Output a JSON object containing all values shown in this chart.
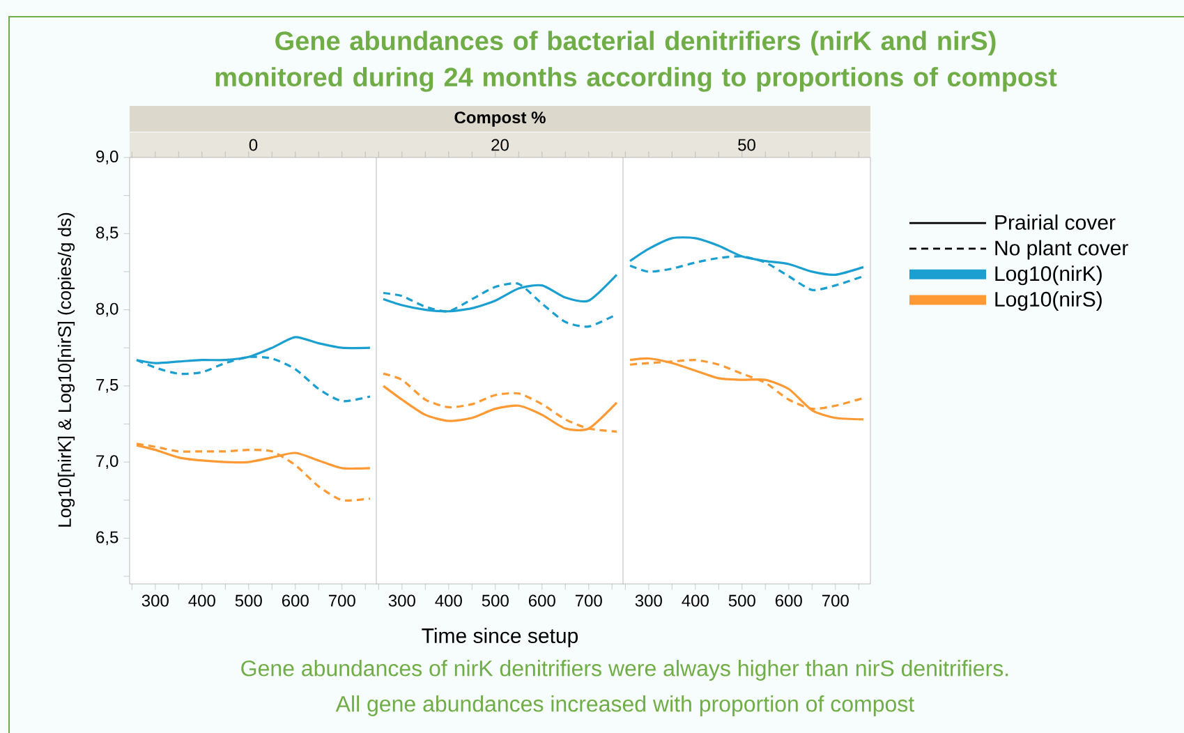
{
  "chart_data": [
    {
      "type": "line",
      "title": "0",
      "ylabel": "Log10[nirK] & Log10[nirS] (copies/g ds)",
      "x": [
        260,
        300,
        350,
        400,
        450,
        500,
        550,
        600,
        650,
        700,
        760
      ],
      "xlim": [
        245,
        775
      ],
      "xticks": [
        {
          "value": 250,
          "label": null
        },
        300,
        {
          "value": 350,
          "label": null
        },
        400,
        {
          "value": 450,
          "label": null
        },
        500,
        {
          "value": 550,
          "label": null
        },
        600,
        {
          "value": 650,
          "label": null
        },
        700,
        {
          "value": 750,
          "label": null
        }
      ],
      "ylim": [
        6.2,
        9.0
      ],
      "yticks": [
        {
          "value": 6.25,
          "label": null
        },
        {
          "value": 6.5,
          "label": "6,5"
        },
        {
          "value": 6.75,
          "label": null
        },
        {
          "value": 7.0,
          "label": "7,0"
        },
        {
          "value": 7.25,
          "label": null
        },
        {
          "value": 7.5,
          "label": "7,5"
        },
        {
          "value": 7.75,
          "label": null
        },
        {
          "value": 8.0,
          "label": "8,0"
        },
        {
          "value": 8.25,
          "label": null
        },
        {
          "value": 8.5,
          "label": "8,5"
        },
        {
          "value": 8.75,
          "label": null
        },
        {
          "value": 9.0,
          "label": "9,0"
        }
      ],
      "series": [
        {
          "color": "#1a9fd0",
          "line_style": "solid",
          "values": [
            7.67,
            7.65,
            7.66,
            7.67,
            7.67,
            7.69,
            7.75,
            7.82,
            7.78,
            7.75,
            7.75
          ]
        },
        {
          "color": "#1a9fd0",
          "line_style": "dashed",
          "values": [
            7.67,
            7.62,
            7.58,
            7.59,
            7.65,
            7.69,
            7.68,
            7.61,
            7.48,
            7.4,
            7.43
          ]
        },
        {
          "color": "#ff9933",
          "line_style": "solid",
          "values": [
            7.11,
            7.08,
            7.03,
            7.01,
            7.0,
            7.0,
            7.03,
            7.06,
            7.01,
            6.96,
            6.96
          ]
        },
        {
          "color": "#ff9933",
          "line_style": "dashed",
          "values": [
            7.12,
            7.1,
            7.07,
            7.07,
            7.07,
            7.08,
            7.07,
            6.98,
            6.84,
            6.75,
            6.76
          ]
        }
      ]
    },
    {
      "type": "line",
      "title": "20",
      "subtitle": "Compost %",
      "xlabel": "Time since setup",
      "tick_labels": "x",
      "annotations": [
        "Gene abundances of bacterial denitrifiers (nirK and nirS) monitored during 24 months according to proportions of compost",
        "Gene abundances of nirK denitrifiers were always higher than nirS denitrifiers.",
        "All gene abundances increased with proportion of compost"
      ],
      "x": [
        260,
        300,
        350,
        400,
        450,
        500,
        550,
        600,
        650,
        700,
        760
      ],
      "xlim": [
        245,
        775
      ],
      "xticks": [
        {
          "value": 250,
          "label": null
        },
        300,
        {
          "value": 350,
          "label": null
        },
        400,
        {
          "value": 450,
          "label": null
        },
        500,
        {
          "value": 550,
          "label": null
        },
        600,
        {
          "value": 650,
          "label": null
        },
        700,
        {
          "value": 750,
          "label": null
        }
      ],
      "ylim": [
        6.2,
        9.0
      ],
      "series": [
        {
          "color": "#1a9fd0",
          "line_style": "solid",
          "values": [
            8.07,
            8.03,
            8.0,
            7.99,
            8.01,
            8.06,
            8.14,
            8.16,
            8.08,
            8.06,
            8.23
          ]
        },
        {
          "color": "#1a9fd0",
          "line_style": "dashed",
          "values": [
            8.11,
            8.09,
            8.02,
            7.99,
            8.07,
            8.15,
            8.17,
            8.04,
            7.92,
            7.89,
            7.97
          ]
        },
        {
          "color": "#ff9933",
          "line_style": "solid",
          "values": [
            7.5,
            7.41,
            7.31,
            7.27,
            7.29,
            7.35,
            7.37,
            7.31,
            7.22,
            7.22,
            7.39
          ]
        },
        {
          "color": "#ff9933",
          "line_style": "dashed",
          "values": [
            7.58,
            7.54,
            7.41,
            7.36,
            7.38,
            7.44,
            7.45,
            7.38,
            7.28,
            7.22,
            7.2
          ]
        }
      ]
    },
    {
      "type": "line",
      "title": "50",
      "tick_labels": "x",
      "x": [
        260,
        300,
        350,
        400,
        450,
        500,
        550,
        600,
        650,
        700,
        760
      ],
      "xlim": [
        245,
        775
      ],
      "xticks": [
        {
          "value": 250,
          "label": null
        },
        300,
        {
          "value": 350,
          "label": null
        },
        400,
        {
          "value": 450,
          "label": null
        },
        500,
        {
          "value": 550,
          "label": null
        },
        600,
        {
          "value": 650,
          "label": null
        },
        700,
        {
          "value": 750,
          "label": null
        }
      ],
      "ylim": [
        6.2,
        9.0
      ],
      "series": [
        {
          "color": "#1a9fd0",
          "line_style": "solid",
          "values": [
            8.32,
            8.4,
            8.47,
            8.47,
            8.42,
            8.35,
            8.32,
            8.3,
            8.25,
            8.23,
            8.28
          ]
        },
        {
          "color": "#1a9fd0",
          "line_style": "dashed",
          "values": [
            8.29,
            8.25,
            8.27,
            8.31,
            8.34,
            8.35,
            8.31,
            8.22,
            8.13,
            8.16,
            8.22
          ]
        },
        {
          "color": "#ff9933",
          "line_style": "solid",
          "values": [
            7.67,
            7.68,
            7.65,
            7.6,
            7.55,
            7.54,
            7.54,
            7.48,
            7.34,
            7.29,
            7.28
          ]
        },
        {
          "color": "#ff9933",
          "line_style": "dashed",
          "values": [
            7.64,
            7.65,
            7.66,
            7.67,
            7.64,
            7.58,
            7.52,
            7.41,
            7.35,
            7.37,
            7.42
          ]
        }
      ],
      "annotations": [
        "Prairial cover",
        "No plant cover",
        "Log10(nirK)",
        "Log10(nirS)"
      ]
    }
  ]
}
